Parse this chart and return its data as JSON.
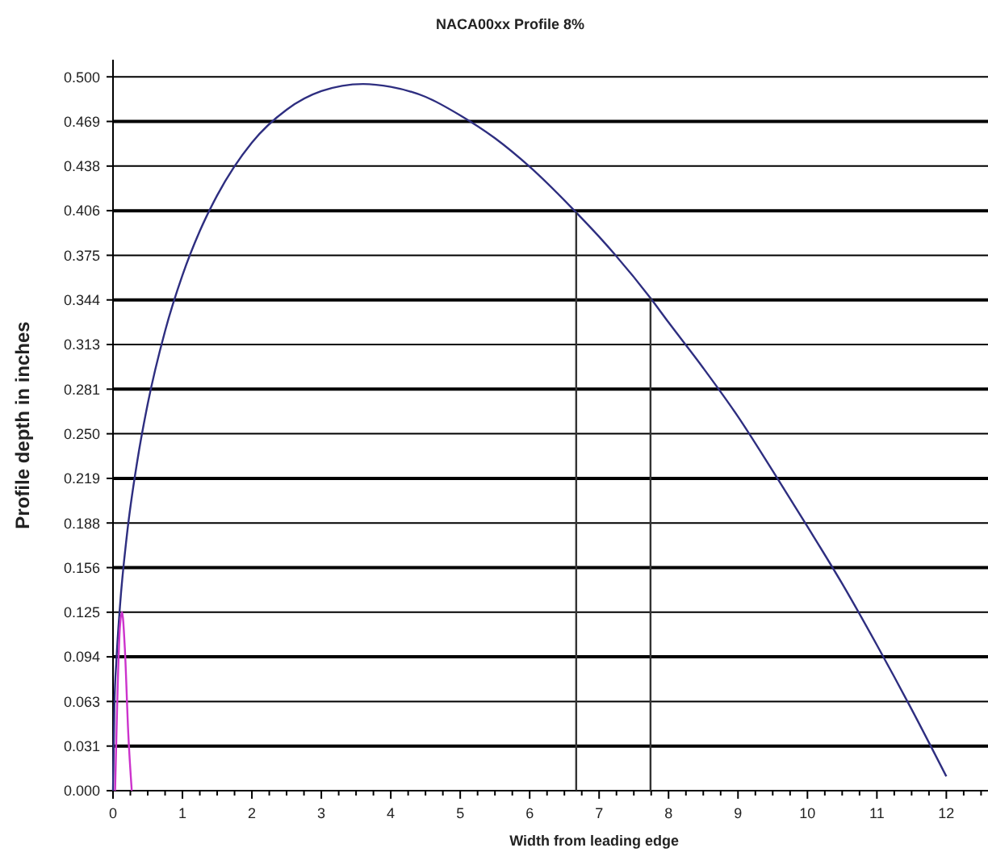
{
  "chart_data": {
    "type": "line",
    "title": "NACA00xx Profile 8%",
    "xlabel": "Width from leading edge",
    "ylabel": "Profile depth in inches",
    "xlim": [
      0,
      12.6
    ],
    "ylim": [
      0,
      0.512
    ],
    "xticks": [
      0,
      {
        "value": 0.25,
        "label": null
      },
      {
        "value": 0.5,
        "label": null
      },
      {
        "value": 0.75,
        "label": null
      },
      1,
      {
        "value": 1.25,
        "label": null
      },
      {
        "value": 1.5,
        "label": null
      },
      {
        "value": 1.75,
        "label": null
      },
      2,
      {
        "value": 2.25,
        "label": null
      },
      {
        "value": 2.5,
        "label": null
      },
      {
        "value": 2.75,
        "label": null
      },
      3,
      {
        "value": 3.25,
        "label": null
      },
      {
        "value": 3.5,
        "label": null
      },
      {
        "value": 3.75,
        "label": null
      },
      4,
      {
        "value": 4.25,
        "label": null
      },
      {
        "value": 4.5,
        "label": null
      },
      {
        "value": 4.75,
        "label": null
      },
      5,
      {
        "value": 5.25,
        "label": null
      },
      {
        "value": 5.5,
        "label": null
      },
      {
        "value": 5.75,
        "label": null
      },
      6,
      {
        "value": 6.25,
        "label": null
      },
      {
        "value": 6.5,
        "label": null
      },
      {
        "value": 6.75,
        "label": null
      },
      7,
      {
        "value": 7.25,
        "label": null
      },
      {
        "value": 7.5,
        "label": null
      },
      {
        "value": 7.75,
        "label": null
      },
      8,
      {
        "value": 8.25,
        "label": null
      },
      {
        "value": 8.5,
        "label": null
      },
      {
        "value": 8.75,
        "label": null
      },
      9,
      {
        "value": 9.25,
        "label": null
      },
      {
        "value": 9.5,
        "label": null
      },
      {
        "value": 9.75,
        "label": null
      },
      10,
      {
        "value": 10.25,
        "label": null
      },
      {
        "value": 10.5,
        "label": null
      },
      {
        "value": 10.75,
        "label": null
      },
      11,
      {
        "value": 11.25,
        "label": null
      },
      {
        "value": 11.5,
        "label": null
      },
      {
        "value": 11.75,
        "label": null
      },
      12,
      {
        "value": 12.25,
        "label": null
      },
      {
        "value": 12.5,
        "label": null
      }
    ],
    "yticks": [
      {
        "value": 0,
        "label": "0.000"
      },
      {
        "value": 0.03125,
        "label": "0.031"
      },
      {
        "value": 0.0625,
        "label": "0.063"
      },
      {
        "value": 0.09375,
        "label": "0.094"
      },
      {
        "value": 0.125,
        "label": "0.125"
      },
      {
        "value": 0.15625,
        "label": "0.156"
      },
      {
        "value": 0.1875,
        "label": "0.188"
      },
      {
        "value": 0.21875,
        "label": "0.219"
      },
      {
        "value": 0.25,
        "label": "0.250"
      },
      {
        "value": 0.28125,
        "label": "0.281"
      },
      {
        "value": 0.3125,
        "label": "0.313"
      },
      {
        "value": 0.34375,
        "label": "0.344"
      },
      {
        "value": 0.375,
        "label": "0.375"
      },
      {
        "value": 0.40625,
        "label": "0.406"
      },
      {
        "value": 0.4375,
        "label": "0.438"
      },
      {
        "value": 0.46875,
        "label": "0.469"
      },
      {
        "value": 0.5,
        "label": "0.500"
      }
    ],
    "grid": "y",
    "marker": "none",
    "line_style": "solid",
    "series": [
      {
        "color": "#2e2e80",
        "x": [
          0,
          0.02,
          0.05,
          0.1,
          0.2,
          0.35,
          0.5,
          0.75,
          1,
          1.25,
          1.5,
          2,
          2.5,
          3,
          3.6,
          4,
          4.5,
          5,
          5.5,
          6,
          6.67,
          7,
          7.74,
          8,
          8.5,
          9,
          9.5,
          10,
          10.5,
          11,
          11.5,
          12
        ],
        "values": [
          0,
          0.059,
          0.092,
          0.129,
          0.179,
          0.231,
          0.271,
          0.322,
          0.361,
          0.392,
          0.417,
          0.454,
          0.477,
          0.49,
          0.495,
          0.493,
          0.486,
          0.473,
          0.457,
          0.437,
          0.405,
          0.388,
          0.345,
          0.328,
          0.296,
          0.262,
          0.224,
          0.185,
          0.145,
          0.102,
          0.057,
          0.01
        ]
      },
      {
        "color": "#cc33cc",
        "x": [
          0.03,
          0.06,
          0.1,
          0.13,
          0.17,
          0.22,
          0.27
        ],
        "values": [
          0,
          0.06,
          0.115,
          0.125,
          0.1,
          0.04,
          0
        ]
      },
      {
        "color": "#333333",
        "x": [
          6.67,
          6.67
        ],
        "values": [
          0,
          0.405
        ]
      },
      {
        "color": "#333333",
        "x": [
          7.74,
          7.74
        ],
        "values": [
          0,
          0.345
        ]
      }
    ]
  }
}
